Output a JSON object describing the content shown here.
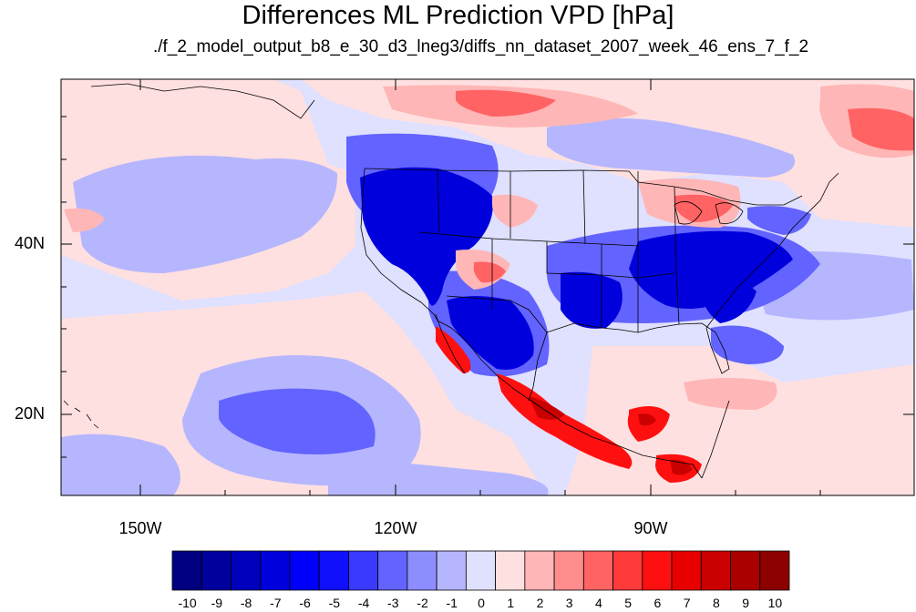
{
  "title": "Differences ML Prediction VPD [hPa]",
  "subtitle": "./f_2_model_output_b8_e_30_d3_lneg3/diffs_nn_dataset_2007_week_46_ens_7_f_2",
  "lat_labels": [
    "40N",
    "20N"
  ],
  "lon_labels": [
    "150W",
    "120W",
    "90W"
  ],
  "colorbar": {
    "labels": [
      "-10",
      "-9",
      "-8",
      "-7",
      "-6",
      "-5",
      "-4",
      "-3",
      "-2",
      "-1",
      "0",
      "1",
      "2",
      "3",
      "4",
      "5",
      "6",
      "7",
      "8",
      "9",
      "10"
    ],
    "colors": [
      "#000080",
      "#00009f",
      "#0000bd",
      "#0000dc",
      "#0000fa",
      "#1010ff",
      "#3a3aff",
      "#6363ff",
      "#8d8dff",
      "#b6b6ff",
      "#e0e0ff",
      "#ffe0e0",
      "#ffb6b6",
      "#ff8d8d",
      "#ff6363",
      "#ff3a3a",
      "#ff1010",
      "#e80000",
      "#ca0000",
      "#ab0000",
      "#8d0000"
    ]
  },
  "map_colors": {
    "ocean_base": "#e0e0ff",
    "pale_red": "#ffe0e0",
    "light_blue": "#b6b6ff",
    "mid_blue": "#6363ff",
    "blue": "#1010ff",
    "deep_blue": "#0000dc",
    "light_red": "#ffb6b6",
    "mid_red": "#ff6363",
    "red": "#ff1010",
    "dark_red": "#ca0000",
    "coast": "#000000"
  }
}
